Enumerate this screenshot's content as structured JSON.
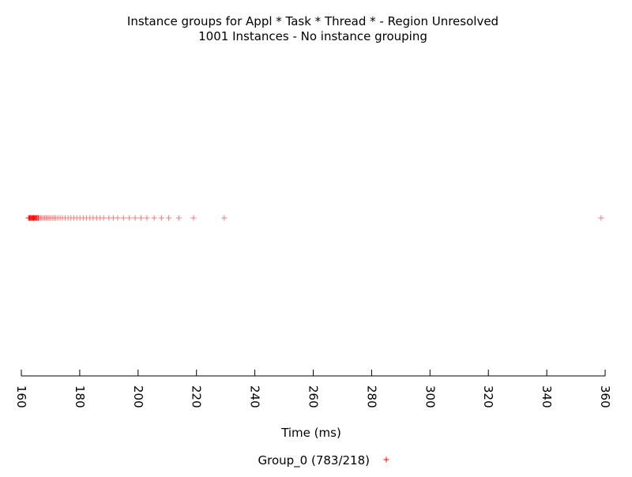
{
  "chart_data": {
    "type": "scatter",
    "title": "Instance groups for Appl * Task * Thread * - Region Unresolved",
    "subtitle": "1001 Instances - No instance grouping",
    "xlabel": "Time (ms)",
    "ylabel": "",
    "xlim": [
      160,
      360
    ],
    "xticks": [
      160,
      180,
      200,
      220,
      240,
      260,
      280,
      300,
      320,
      340,
      360
    ],
    "grid": false,
    "legend_position": "bottom-center",
    "series": [
      {
        "name": "Group_0 (783/218)",
        "color": "#ff0000",
        "marker": "+",
        "x": [
          162.5,
          162.8,
          163.0,
          163.3,
          163.6,
          163.9,
          164.2,
          164.5,
          164.8,
          165.1,
          165.4,
          165.8,
          166.2,
          166.6,
          167.0,
          167.5,
          168.0,
          168.5,
          169.0,
          169.5,
          170.0,
          170.6,
          171.2,
          171.8,
          172.5,
          173.3,
          174.1,
          175.0,
          176.0,
          177.0,
          178.0,
          179.0,
          180.1,
          181.2,
          182.3,
          183.5,
          184.6,
          185.8,
          187.0,
          188.2,
          190.0,
          191.5,
          193.0,
          195.0,
          197.0,
          199.0,
          201.0,
          203.0,
          205.5,
          208.0,
          210.5,
          214.0,
          219.0,
          229.5,
          358.6
        ],
        "y": [
          0,
          0,
          0,
          0,
          0,
          0,
          0,
          0,
          0,
          0,
          0,
          0,
          0,
          0,
          0,
          0,
          0,
          0,
          0,
          0,
          0,
          0,
          0,
          0,
          0,
          0,
          0,
          0,
          0,
          0,
          0,
          0,
          0,
          0,
          0,
          0,
          0,
          0,
          0,
          0,
          0,
          0,
          0,
          0,
          0,
          0,
          0,
          0,
          0,
          0,
          0,
          0,
          0,
          0,
          0
        ],
        "legend_label": "Group_0 (783/218)"
      }
    ]
  }
}
